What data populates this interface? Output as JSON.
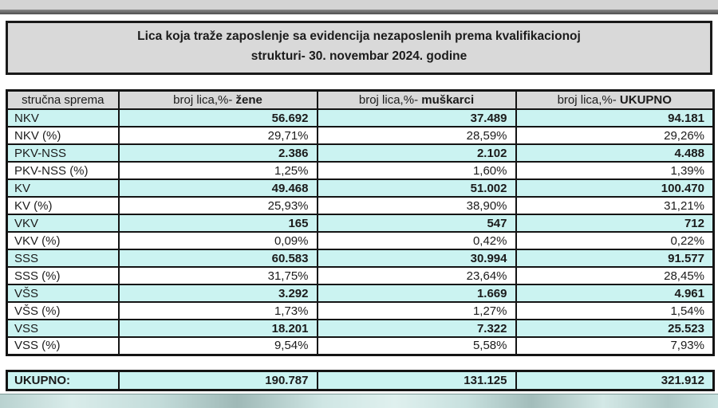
{
  "title": {
    "line1": "Lica koja traže zaposlenje sa evidencija nezaposlenih prema kvalifikacionoj",
    "line2": "strukturi- 30. novembar 2024. godine"
  },
  "table": {
    "headers": {
      "col0": "stručna sprema",
      "col1_prefix": "broj lica,%-",
      "col1_emph": "žene",
      "col2_prefix": "broj lica,%-",
      "col2_emph": "muškarci",
      "col3_prefix": "broj lica,%-",
      "col3_emph": "UKUPNO"
    },
    "rows": [
      {
        "label": "NKV",
        "zene": "56.692",
        "muskarci": "37.489",
        "ukupno": "94.181"
      },
      {
        "label": "NKV (%)",
        "zene": "29,71%",
        "muskarci": "28,59%",
        "ukupno": "29,26%"
      },
      {
        "label": "PKV-NSS",
        "zene": "2.386",
        "muskarci": "2.102",
        "ukupno": "4.488"
      },
      {
        "label": "PKV-NSS (%)",
        "zene": "1,25%",
        "muskarci": "1,60%",
        "ukupno": "1,39%"
      },
      {
        "label": "KV",
        "zene": "49.468",
        "muskarci": "51.002",
        "ukupno": "100.470"
      },
      {
        "label": "KV (%)",
        "zene": "25,93%",
        "muskarci": "38,90%",
        "ukupno": "31,21%"
      },
      {
        "label": "VKV",
        "zene": "165",
        "muskarci": "547",
        "ukupno": "712"
      },
      {
        "label": "VKV (%)",
        "zene": "0,09%",
        "muskarci": "0,42%",
        "ukupno": "0,22%"
      },
      {
        "label": "SSS",
        "zene": "60.583",
        "muskarci": "30.994",
        "ukupno": "91.577"
      },
      {
        "label": "SSS (%)",
        "zene": "31,75%",
        "muskarci": "23,64%",
        "ukupno": "28,45%"
      },
      {
        "label": "VŠS",
        "zene": "3.292",
        "muskarci": "1.669",
        "ukupno": "4.961"
      },
      {
        "label": "VŠS (%)",
        "zene": "1,73%",
        "muskarci": "1,27%",
        "ukupno": "1,54%"
      },
      {
        "label": "VSS",
        "zene": "18.201",
        "muskarci": "7.322",
        "ukupno": "25.523"
      },
      {
        "label": "VSS (%)",
        "zene": "9,54%",
        "muskarci": "5,58%",
        "ukupno": "7,93%"
      }
    ],
    "total": {
      "label": "UKUPNO:",
      "zene": "190.787",
      "muskarci": "131.125",
      "ukupno": "321.912"
    }
  },
  "colors": {
    "row_highlight": "#cbf3f1",
    "header_bg": "#d9d9d9",
    "border": "#141414"
  }
}
